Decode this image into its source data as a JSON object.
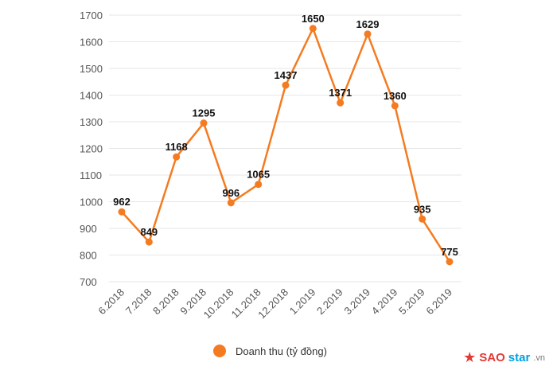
{
  "chart_data": {
    "type": "line",
    "categories": [
      "6.2018",
      "7.2018",
      "8.2018",
      "9.2018",
      "10.2018",
      "11.2018",
      "12.2018",
      "1.2019",
      "2.2019",
      "3.2019",
      "4.2019",
      "5.2019",
      "6.2019"
    ],
    "series": [
      {
        "name": "Doanh thu (tỷ đồng)",
        "values": [
          962,
          849,
          1168,
          1295,
          996,
          1065,
          1437,
          1650,
          1371,
          1629,
          1360,
          935,
          775
        ],
        "color": "#f47b20"
      }
    ],
    "yticks": [
      700,
      800,
      900,
      1000,
      1100,
      1200,
      1300,
      1400,
      1500,
      1600,
      1700
    ],
    "ylim": [
      700,
      1700
    ],
    "grid": true,
    "legend_position": "bottom"
  },
  "legend": {
    "label": "Doanh thu (tỷ đồng)",
    "color": "#f47b20"
  },
  "watermark": {
    "sao": "SAO",
    "star": "star",
    "suffix": ".vn",
    "star_color": "#e53935"
  }
}
